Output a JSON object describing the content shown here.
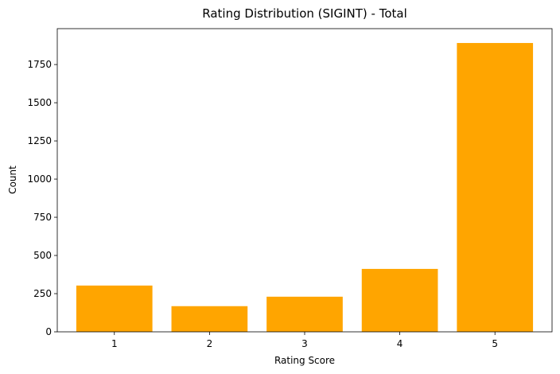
{
  "chart_data": {
    "type": "bar",
    "title": "Rating Distribution (SIGINT) - Total",
    "xlabel": "Rating Score",
    "ylabel": "Count",
    "categories": [
      "1",
      "2",
      "3",
      "4",
      "5"
    ],
    "values": [
      303,
      168,
      230,
      412,
      1891
    ],
    "ylim": [
      0,
      1985
    ],
    "yticks": [
      "0",
      "250",
      "500",
      "750",
      "1000",
      "1250",
      "1500",
      "1750"
    ],
    "grid": false,
    "bar_color": "#FFA500"
  }
}
